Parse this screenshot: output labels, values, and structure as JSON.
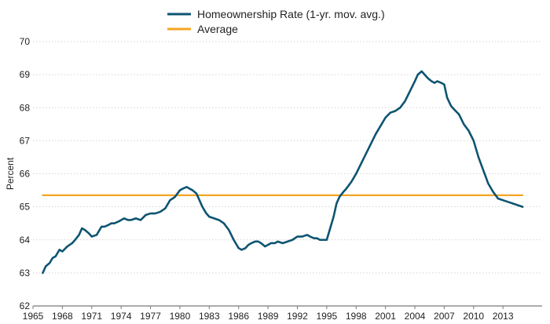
{
  "chart_data": {
    "type": "line",
    "title": "",
    "xlabel": "",
    "ylabel": "Percent",
    "xlim": [
      1965,
      2017
    ],
    "ylim": [
      62,
      70
    ],
    "y_ticks": [
      62,
      63,
      64,
      65,
      66,
      67,
      68,
      69,
      70
    ],
    "x_ticks": [
      1965,
      1968,
      1971,
      1974,
      1977,
      1980,
      1983,
      1986,
      1989,
      1992,
      1995,
      1998,
      2001,
      2004,
      2007,
      2010,
      2013
    ],
    "grid": "horizontal",
    "legend": "top-center",
    "series": [
      {
        "name": "Homeownership Rate (1-yr. mov. avg.)",
        "color": "#0e5472",
        "x": [
          1966.0,
          1966.3,
          1966.7,
          1967.0,
          1967.3,
          1967.7,
          1968.0,
          1968.5,
          1969.0,
          1969.3,
          1969.7,
          1970.0,
          1970.3,
          1970.7,
          1971.0,
          1971.5,
          1972.0,
          1972.3,
          1972.7,
          1973.0,
          1973.3,
          1973.7,
          1974.0,
          1974.3,
          1974.7,
          1975.0,
          1975.5,
          1976.0,
          1976.5,
          1977.0,
          1977.5,
          1978.0,
          1978.5,
          1979.0,
          1979.5,
          1980.0,
          1980.3,
          1980.7,
          1981.0,
          1981.3,
          1981.7,
          1982.0,
          1982.3,
          1982.7,
          1983.0,
          1983.5,
          1984.0,
          1984.5,
          1985.0,
          1985.5,
          1986.0,
          1986.3,
          1986.7,
          1987.0,
          1987.3,
          1987.7,
          1988.0,
          1988.3,
          1988.7,
          1989.0,
          1989.3,
          1989.7,
          1990.0,
          1990.5,
          1991.0,
          1991.5,
          1992.0,
          1992.5,
          1993.0,
          1993.3,
          1993.7,
          1994.0,
          1994.3,
          1994.7,
          1995.0,
          1995.3,
          1995.7,
          1996.0,
          1996.3,
          1996.7,
          1997.0,
          1997.5,
          1998.0,
          1998.5,
          1999.0,
          1999.5,
          2000.0,
          2000.5,
          2001.0,
          2001.5,
          2002.0,
          2002.5,
          2003.0,
          2003.5,
          2004.0,
          2004.3,
          2004.7,
          2005.0,
          2005.3,
          2005.7,
          2006.0,
          2006.3,
          2006.7,
          2007.0,
          2007.3,
          2007.7,
          2008.0,
          2008.5,
          2009.0,
          2009.5,
          2010.0,
          2010.5,
          2011.0,
          2011.5,
          2012.0,
          2012.5,
          2013.0,
          2013.5,
          2014.0,
          2014.5,
          2015.0
        ],
        "values": [
          63.0,
          63.2,
          63.3,
          63.45,
          63.5,
          63.7,
          63.65,
          63.8,
          63.9,
          64.0,
          64.15,
          64.35,
          64.3,
          64.2,
          64.1,
          64.15,
          64.4,
          64.4,
          64.45,
          64.5,
          64.5,
          64.55,
          64.6,
          64.65,
          64.6,
          64.6,
          64.65,
          64.6,
          64.75,
          64.8,
          64.8,
          64.85,
          64.95,
          65.2,
          65.3,
          65.5,
          65.55,
          65.6,
          65.55,
          65.5,
          65.4,
          65.2,
          65.0,
          64.8,
          64.7,
          64.65,
          64.6,
          64.5,
          64.3,
          64.0,
          63.75,
          63.7,
          63.75,
          63.85,
          63.9,
          63.95,
          63.95,
          63.9,
          63.8,
          63.85,
          63.9,
          63.9,
          63.95,
          63.9,
          63.95,
          64.0,
          64.1,
          64.1,
          64.15,
          64.1,
          64.05,
          64.05,
          64.0,
          64.0,
          64.0,
          64.3,
          64.7,
          65.1,
          65.3,
          65.45,
          65.55,
          65.75,
          66.0,
          66.3,
          66.6,
          66.9,
          67.2,
          67.45,
          67.7,
          67.85,
          67.9,
          68.0,
          68.2,
          68.5,
          68.8,
          69.0,
          69.1,
          69.0,
          68.9,
          68.8,
          68.75,
          68.8,
          68.75,
          68.7,
          68.3,
          68.05,
          67.95,
          67.8,
          67.5,
          67.3,
          67.0,
          66.5,
          66.1,
          65.7,
          65.45,
          65.25,
          65.2,
          65.15,
          65.1,
          65.05,
          65.0
        ]
      },
      {
        "name": "Average",
        "color": "#f5a623",
        "x": [
          1966.0,
          2015.0
        ],
        "values": [
          65.35,
          65.35
        ]
      }
    ]
  }
}
